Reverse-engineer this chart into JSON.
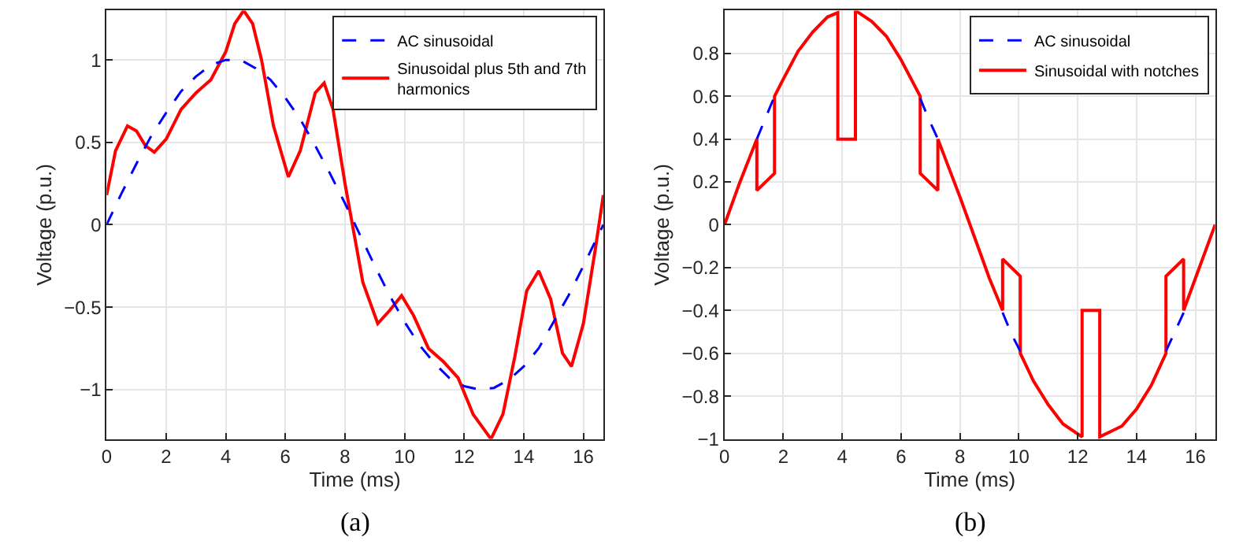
{
  "chart_data": [
    {
      "type": "line",
      "xlabel": "Time (ms)",
      "ylabel": "Voltage (p.u.)",
      "xlim": [
        0,
        16.67
      ],
      "ylim": [
        -1.3,
        1.3
      ],
      "xticks": [
        0,
        2,
        4,
        6,
        8,
        10,
        12,
        14,
        16
      ],
      "yticks": [
        {
          "value": -1,
          "label": "−1"
        },
        {
          "value": -0.5,
          "label": "−0.5"
        },
        0,
        0.5,
        1
      ],
      "grid": true,
      "legend": "top right",
      "annotations": [
        "(a)"
      ],
      "series": [
        {
          "name": "AC sinusoidal",
          "color": "#0000ff",
          "line_style": "dashed",
          "x": [
            0,
            0.5,
            1,
            1.5,
            2,
            2.5,
            3,
            3.5,
            4,
            4.5,
            5,
            5.5,
            6,
            6.5,
            7,
            7.5,
            8,
            8.5,
            9,
            9.5,
            10,
            10.5,
            11,
            11.5,
            12,
            12.5,
            13,
            13.5,
            14,
            14.5,
            15,
            15.5,
            16,
            16.67
          ],
          "values": [
            0,
            0.19,
            0.37,
            0.54,
            0.68,
            0.81,
            0.9,
            0.97,
            1.0,
            1.0,
            0.95,
            0.88,
            0.77,
            0.64,
            0.48,
            0.31,
            0.13,
            -0.06,
            -0.25,
            -0.43,
            -0.59,
            -0.73,
            -0.84,
            -0.93,
            -0.98,
            -1.0,
            -0.99,
            -0.94,
            -0.86,
            -0.75,
            -0.59,
            -0.43,
            -0.25,
            0
          ]
        },
        {
          "name": "Sinusoidal plus 5th and 7th harmonics",
          "color": "#ff0000",
          "line_style": "solid",
          "x": [
            0,
            0.3,
            0.7,
            1.0,
            1.3,
            1.6,
            2.0,
            2.5,
            3.0,
            3.5,
            4.0,
            4.3,
            4.6,
            4.9,
            5.2,
            5.6,
            6.1,
            6.5,
            7.0,
            7.3,
            7.6,
            8.0,
            8.3,
            8.6,
            9.1,
            9.5,
            9.9,
            10.3,
            10.8,
            11.3,
            11.8,
            12.3,
            12.9,
            13.3,
            13.7,
            14.1,
            14.5,
            14.9,
            15.3,
            15.6,
            16.0,
            16.4,
            16.67
          ],
          "values": [
            0.18,
            0.45,
            0.6,
            0.57,
            0.48,
            0.44,
            0.52,
            0.7,
            0.8,
            0.88,
            1.05,
            1.22,
            1.3,
            1.22,
            1.0,
            0.6,
            0.29,
            0.45,
            0.8,
            0.86,
            0.7,
            0.25,
            -0.05,
            -0.35,
            -0.6,
            -0.52,
            -0.43,
            -0.55,
            -0.75,
            -0.83,
            -0.93,
            -1.15,
            -1.3,
            -1.15,
            -0.8,
            -0.4,
            -0.28,
            -0.45,
            -0.78,
            -0.86,
            -0.6,
            -0.15,
            0.18
          ]
        }
      ]
    },
    {
      "type": "line",
      "xlabel": "Time (ms)",
      "ylabel": "Voltage (p.u.)",
      "xlim": [
        0,
        16.67
      ],
      "ylim": [
        -1,
        1
      ],
      "xticks": [
        0,
        2,
        4,
        6,
        8,
        10,
        12,
        14,
        16
      ],
      "yticks": [
        {
          "value": -1,
          "label": "−1"
        },
        {
          "value": -0.8,
          "label": "−0.8"
        },
        {
          "value": -0.6,
          "label": "−0.6"
        },
        {
          "value": -0.4,
          "label": "−0.4"
        },
        {
          "value": -0.2,
          "label": "−0.2"
        },
        0,
        0.2,
        0.4,
        0.6,
        0.8
      ],
      "grid": true,
      "legend": "top right",
      "annotations": [
        "(b)"
      ],
      "series": [
        {
          "name": "AC sinusoidal",
          "color": "#0000ff",
          "line_style": "dashed",
          "x": [
            1.1,
            1.4,
            1.7,
            4.0,
            6.65,
            6.95,
            7.25,
            8.3,
            9.45,
            9.75,
            10.05,
            12.5,
            15.0,
            15.3,
            15.6
          ],
          "values": [
            0.4,
            0.5,
            0.6,
            null,
            0.59,
            0.49,
            0.4,
            null,
            -0.41,
            -0.51,
            -0.59,
            null,
            -0.59,
            -0.5,
            -0.41
          ]
        },
        {
          "name": "Sinusoidal with notches",
          "color": "#ff0000",
          "line_style": "solid",
          "x": [
            0,
            0.5,
            1.1,
            1.1,
            1.7,
            1.7,
            2.0,
            2.5,
            3,
            3.5,
            3.85,
            3.85,
            4.45,
            4.45,
            5,
            5.5,
            6,
            6.65,
            6.65,
            7.25,
            7.25,
            8,
            8.5,
            9,
            9.45,
            9.45,
            10.05,
            10.05,
            10.5,
            11,
            11.5,
            12.15,
            12.15,
            12.75,
            12.75,
            13.5,
            14,
            14.5,
            15.0,
            15.0,
            15.6,
            15.6,
            16,
            16.67
          ],
          "values": [
            0,
            0.19,
            0.4,
            0.16,
            0.24,
            0.6,
            0.68,
            0.81,
            0.9,
            0.97,
            0.99,
            0.4,
            0.4,
            1.0,
            0.95,
            0.88,
            0.77,
            0.6,
            0.24,
            0.16,
            0.4,
            0.13,
            -0.06,
            -0.25,
            -0.4,
            -0.16,
            -0.24,
            -0.6,
            -0.73,
            -0.84,
            -0.93,
            -0.99,
            -0.4,
            -0.4,
            -0.99,
            -0.94,
            -0.86,
            -0.75,
            -0.6,
            -0.24,
            -0.16,
            -0.4,
            -0.25,
            0
          ]
        }
      ]
    }
  ]
}
